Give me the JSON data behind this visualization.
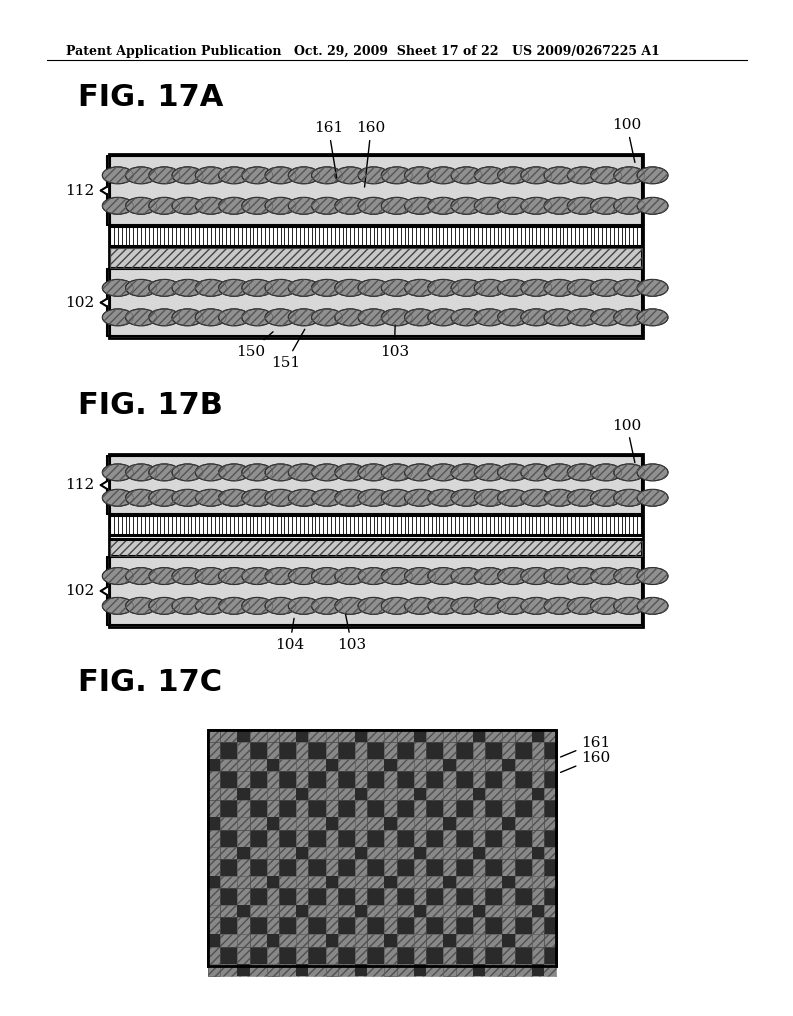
{
  "header_left": "Patent Application Publication",
  "header_middle": "Oct. 29, 2009  Sheet 17 of 22",
  "header_right": "US 2009/0267225 A1",
  "bg_color": "#ffffff",
  "line_color": "#000000",
  "fig17a": {
    "label_100": "100",
    "label_112": "112",
    "label_102": "102",
    "label_161": "161",
    "label_160": "160",
    "label_150": "150",
    "label_151": "151",
    "label_103": "103"
  },
  "fig17b": {
    "label_100": "100",
    "label_112": "112",
    "label_102": "102",
    "label_104": "104",
    "label_103": "103"
  },
  "fig17c": {
    "label_161": "161",
    "label_160": "160"
  }
}
